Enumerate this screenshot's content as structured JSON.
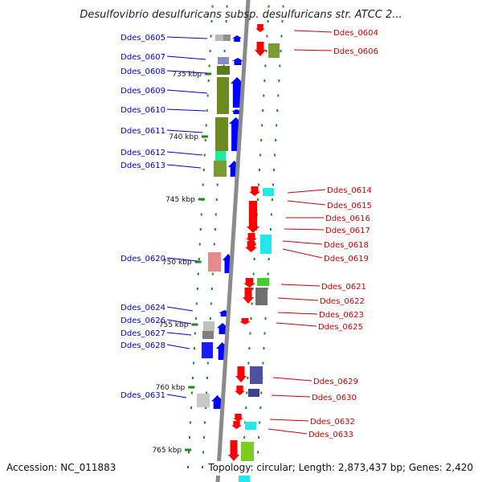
{
  "title": "Desulfovibrio desulfuricans subsp. desulfuricans str. ATCC 2...",
  "footer": {
    "accession": "Accession: NC_011883",
    "topology": "Topology: circular; Length: 2,873,437 bp; Genes: 2,420"
  },
  "colors": {
    "reverse_label": "#0000c8",
    "forward_label": "#cc0000",
    "reverse_arrow": "#0000ff",
    "forward_arrow": "#ff0000",
    "backbone": "#8a8a8a",
    "tick": "#1a8a1a"
  },
  "ticks": [
    "735 kbp",
    "740 kbp",
    "745 kbp",
    "750 kbp",
    "755 kbp",
    "760 kbp",
    "765 kbp"
  ],
  "reverse_genes": [
    "Ddes_0605",
    "Ddes_0607",
    "Ddes_0608",
    "Ddes_0609",
    "Ddes_0610",
    "Ddes_0611",
    "Ddes_0612",
    "Ddes_0613",
    "Ddes_0620",
    "Ddes_0624",
    "Ddes_0626",
    "Ddes_0627",
    "Ddes_0628",
    "Ddes_0631"
  ],
  "forward_genes": [
    "Ddes_0604",
    "Ddes_0606",
    "Ddes_0614",
    "Ddes_0615",
    "Ddes_0616",
    "Ddes_0617",
    "Ddes_0618",
    "Ddes_0619",
    "Ddes_0621",
    "Ddes_0622",
    "Ddes_0623",
    "Ddes_0625",
    "Ddes_0629",
    "Ddes_0630",
    "Ddes_0632",
    "Ddes_0633"
  ]
}
